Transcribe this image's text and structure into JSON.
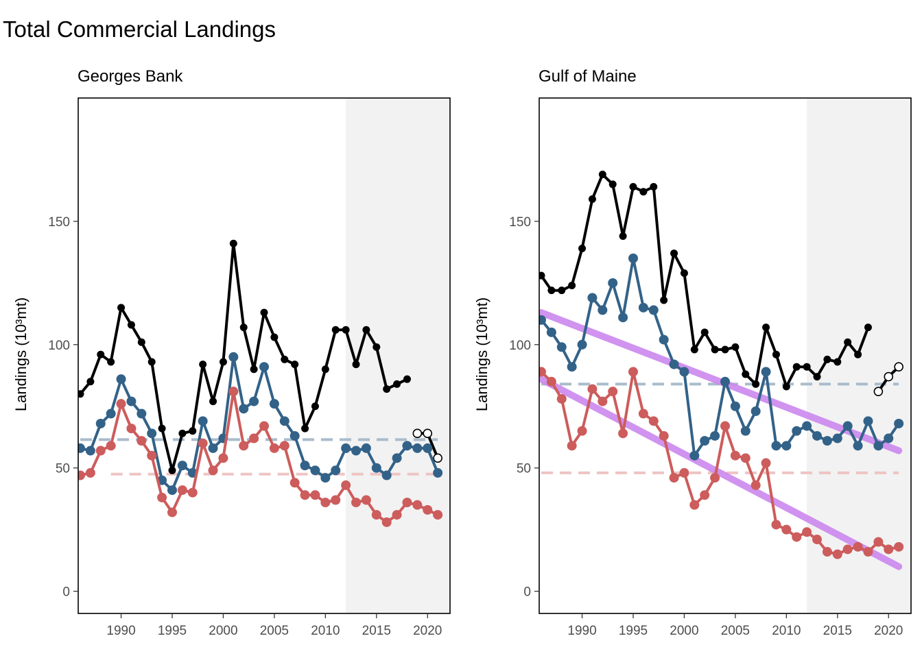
{
  "figure": {
    "title": "Total Commercial Landings"
  },
  "colors": {
    "total": "#000000",
    "blue": "#336288",
    "red": "#cd5c5c",
    "blue_mean": "#a9bccc",
    "red_mean": "#eec4c4",
    "trend": "#cc88ee",
    "shade": "#f2f2f2"
  },
  "chart_data": [
    {
      "type": "line",
      "title": "Georges Bank",
      "ylabel": "Landings (10³mt)",
      "xlabel": "",
      "xlim": [
        1985.8,
        2022.2
      ],
      "ylim": [
        -9,
        200
      ],
      "xticks": [
        1990,
        1995,
        2000,
        2005,
        2010,
        2015,
        2020
      ],
      "yticks": [
        0,
        50,
        100,
        150
      ],
      "shaded_region": [
        2012,
        2022.2
      ],
      "x": [
        1986,
        1987,
        1988,
        1989,
        1990,
        1991,
        1992,
        1993,
        1994,
        1995,
        1996,
        1997,
        1998,
        1999,
        2000,
        2001,
        2002,
        2003,
        2004,
        2005,
        2006,
        2007,
        2008,
        2009,
        2010,
        2011,
        2012,
        2013,
        2014,
        2015,
        2016,
        2017,
        2018,
        2019,
        2020,
        2021
      ],
      "series": [
        {
          "key": "total",
          "values": [
            80,
            85,
            96,
            93,
            115,
            108,
            101,
            93,
            66,
            49,
            64,
            65,
            92,
            77,
            93,
            141,
            107,
            90,
            113,
            103,
            94,
            92,
            66,
            75,
            90,
            106,
            106,
            92,
            106,
            99,
            82,
            84,
            86,
            null,
            null,
            null
          ]
        },
        {
          "key": "total_open",
          "open_markers": true,
          "x": [
            2019,
            2020,
            2021
          ],
          "values": [
            64,
            64,
            54
          ]
        },
        {
          "key": "blue",
          "values": [
            58,
            57,
            68,
            72,
            86,
            77,
            72,
            64,
            45,
            41,
            51,
            48,
            69,
            58,
            62,
            95,
            74,
            77,
            91,
            76,
            69,
            63,
            51,
            49,
            46,
            49,
            58,
            57,
            58,
            50,
            47,
            54,
            59,
            58,
            58,
            48
          ]
        },
        {
          "key": "red",
          "values": [
            47,
            48,
            57,
            59,
            76,
            66,
            61,
            55,
            38,
            32,
            41,
            40,
            60,
            49,
            54,
            81,
            59,
            62,
            67,
            58,
            59,
            44,
            39,
            39,
            36,
            37,
            43,
            36,
            37,
            31,
            28,
            31,
            36,
            35,
            33,
            31
          ]
        }
      ],
      "hlines": [
        {
          "key": "blue_mean",
          "y": 61.5,
          "x_range": [
            1986,
            2021
          ]
        },
        {
          "key": "red_mean",
          "y": 47.5,
          "x_range": [
            1989,
            2021
          ]
        }
      ],
      "trends": []
    },
    {
      "type": "line",
      "title": "Gulf of Maine",
      "ylabel": "Landings (10³mt)",
      "xlabel": "",
      "xlim": [
        1985.8,
        2022.2
      ],
      "ylim": [
        -9,
        200
      ],
      "xticks": [
        1990,
        1995,
        2000,
        2005,
        2010,
        2015,
        2020
      ],
      "yticks": [
        0,
        50,
        100,
        150
      ],
      "shaded_region": [
        2012,
        2022.2
      ],
      "x": [
        1986,
        1987,
        1988,
        1989,
        1990,
        1991,
        1992,
        1993,
        1994,
        1995,
        1996,
        1997,
        1998,
        1999,
        2000,
        2001,
        2002,
        2003,
        2004,
        2005,
        2006,
        2007,
        2008,
        2009,
        2010,
        2011,
        2012,
        2013,
        2014,
        2015,
        2016,
        2017,
        2018,
        2019,
        2020,
        2021
      ],
      "series": [
        {
          "key": "total",
          "values": [
            128,
            122,
            122,
            124,
            139,
            159,
            169,
            165,
            144,
            164,
            162,
            164,
            118,
            137,
            129,
            98,
            105,
            98,
            98,
            99,
            88,
            84,
            107,
            96,
            83,
            91,
            91,
            87,
            94,
            93,
            101,
            96,
            107,
            null,
            null,
            null
          ]
        },
        {
          "key": "total_open",
          "open_markers": true,
          "x": [
            2019,
            2020,
            2021
          ],
          "values": [
            81,
            87,
            91
          ]
        },
        {
          "key": "blue",
          "values": [
            110,
            105,
            99,
            91,
            100,
            119,
            114,
            125,
            111,
            135,
            115,
            114,
            102,
            92,
            89,
            55,
            61,
            63,
            85,
            75,
            65,
            73,
            89,
            59,
            59,
            65,
            67,
            63,
            61,
            62,
            67,
            59,
            69,
            59,
            62,
            68
          ]
        },
        {
          "key": "red",
          "values": [
            89,
            85,
            78,
            59,
            65,
            82,
            77,
            81,
            64,
            89,
            72,
            69,
            63,
            46,
            48,
            35,
            39,
            46,
            67,
            55,
            54,
            43,
            52,
            27,
            25,
            22,
            24,
            21,
            16,
            15,
            17,
            18,
            16,
            20,
            17,
            18
          ]
        }
      ],
      "hlines": [
        {
          "key": "blue_mean",
          "y": 84,
          "x_range": [
            1986,
            2021
          ]
        },
        {
          "key": "red_mean",
          "y": 48,
          "x_range": [
            1986,
            2021
          ]
        }
      ],
      "trends": [
        {
          "key": "blue_trend",
          "x": [
            1986,
            2021
          ],
          "y": [
            113,
            57
          ]
        },
        {
          "key": "red_trend",
          "x": [
            1986,
            2021
          ],
          "y": [
            86,
            10
          ]
        }
      ]
    }
  ]
}
